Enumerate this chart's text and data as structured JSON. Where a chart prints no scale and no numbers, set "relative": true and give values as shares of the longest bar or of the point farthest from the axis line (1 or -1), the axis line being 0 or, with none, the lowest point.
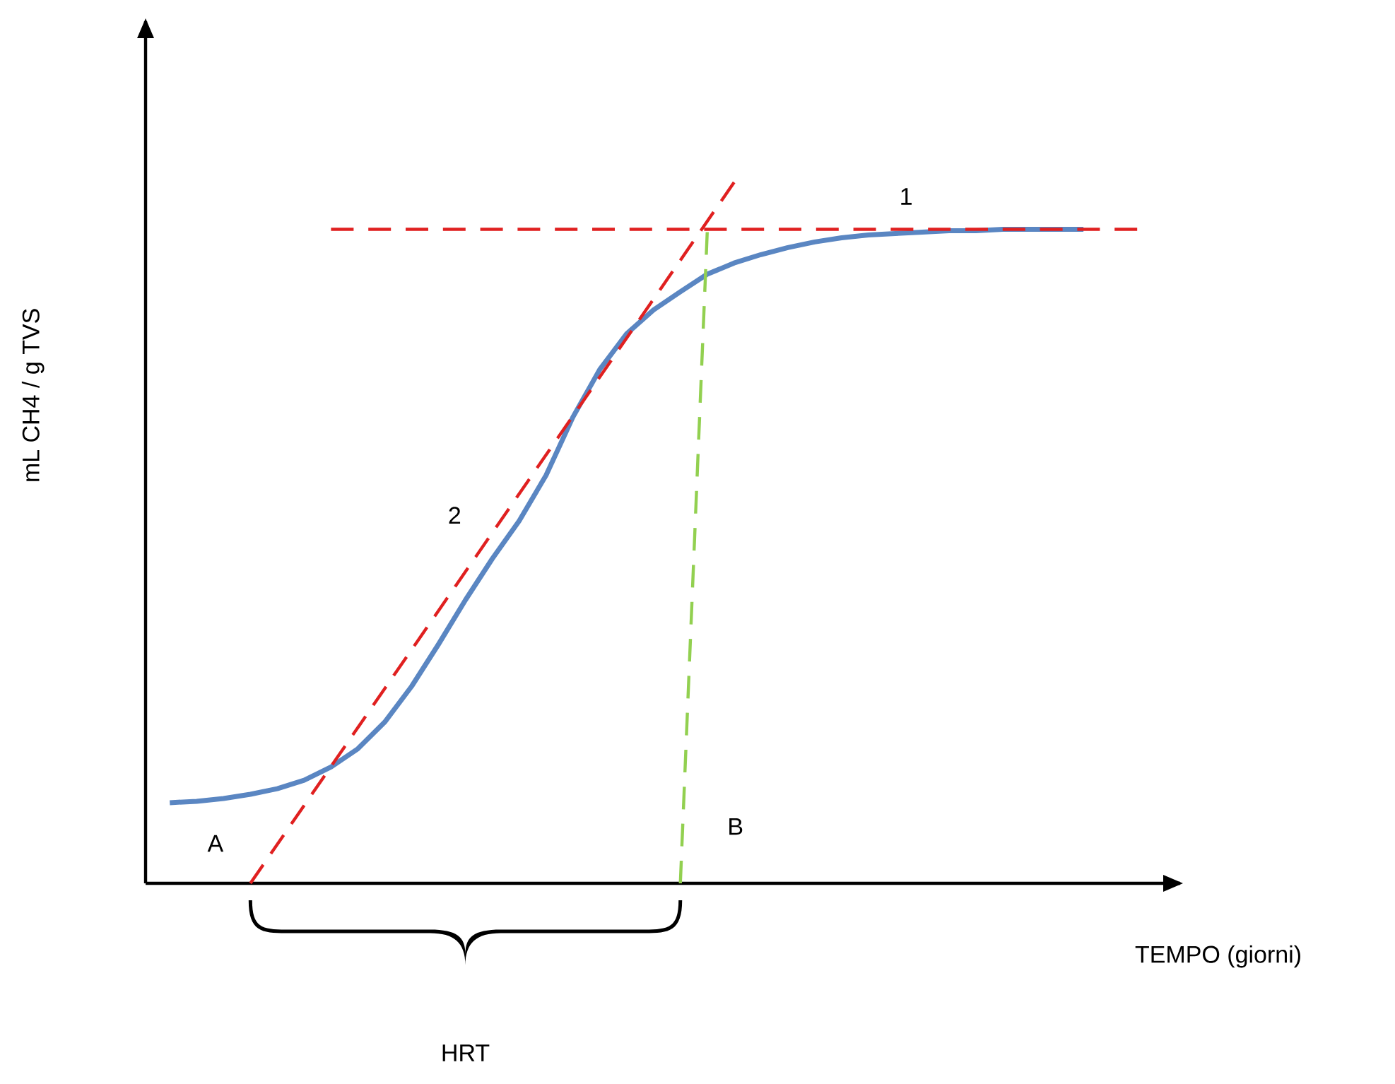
{
  "chart_data": {
    "type": "line",
    "relative": true,
    "xlabel": "TEMPO (giorni)",
    "ylabel": "mL CH4 / g TVS",
    "categories": [
      null,
      null,
      null,
      null,
      null,
      null,
      null,
      null,
      null,
      null,
      null,
      null,
      null,
      null,
      null,
      null,
      null,
      null,
      null,
      null,
      null,
      null,
      null,
      null,
      null,
      null,
      null,
      null,
      null,
      null,
      null,
      null,
      null,
      null,
      null,
      null,
      null
    ],
    "series": [
      {
        "color": "#5a86c2",
        "line_style": "solid",
        "values": [
          0.115,
          0.117,
          0.121,
          0.127,
          0.135,
          0.147,
          0.166,
          0.192,
          0.23,
          0.281,
          0.341,
          0.404,
          0.463,
          0.517,
          0.582,
          0.665,
          0.733,
          0.784,
          0.818,
          0.844,
          0.869,
          0.885,
          0.897,
          0.907,
          0.915,
          0.921,
          0.925,
          0.927,
          0.929,
          0.931,
          0.931,
          0.933,
          0.933,
          0.933,
          0.933,
          null,
          null
        ]
      },
      {
        "color": "#e02020",
        "line_style": "dashed",
        "values": [
          null,
          null,
          null,
          0,
          null,
          null,
          null,
          null,
          null,
          null,
          null,
          null,
          null,
          null,
          null,
          null,
          null,
          null,
          null,
          null,
          null,
          1,
          null,
          null,
          null,
          null,
          null,
          null,
          null,
          null,
          null,
          null,
          null,
          null,
          null,
          null,
          null
        ]
      },
      {
        "color": "#e02020",
        "line_style": "dashed",
        "values": [
          null,
          null,
          null,
          null,
          null,
          null,
          0.933,
          0.933,
          0.933,
          0.933,
          0.933,
          0.933,
          0.933,
          0.933,
          0.933,
          0.933,
          0.933,
          0.933,
          0.933,
          0.933,
          0.933,
          0.933,
          0.933,
          0.933,
          0.933,
          0.933,
          0.933,
          0.933,
          0.933,
          0.933,
          0.933,
          0.933,
          0.933,
          0.933,
          0.933,
          0.933,
          0.933
        ]
      },
      {
        "color": "#92d050",
        "line_style": "dashed",
        "values": [
          null,
          null,
          null,
          null,
          null,
          null,
          null,
          null,
          null,
          null,
          null,
          null,
          null,
          null,
          null,
          null,
          null,
          null,
          null,
          0,
          0.929,
          null,
          null,
          null,
          null,
          null,
          null,
          null,
          null,
          null,
          null,
          null,
          null,
          null,
          null,
          null,
          null
        ]
      }
    ],
    "annotations": [
      "1",
      "2",
      "A",
      "B",
      "HRT"
    ]
  }
}
